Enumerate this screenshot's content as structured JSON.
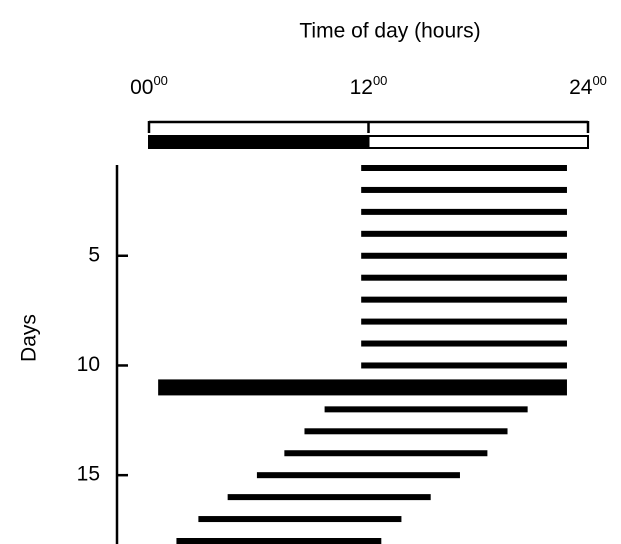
{
  "chart_data": {
    "type": "actogram",
    "title": "Time of day (hours)",
    "ylabel": "Days",
    "xlim": [
      0,
      24
    ],
    "xticks": [
      {
        "value": 0,
        "label": "00",
        "sup": "00"
      },
      {
        "value": 12,
        "label": "12",
        "sup": "00"
      },
      {
        "value": 24,
        "label": "24",
        "sup": "00"
      }
    ],
    "lighting": [
      {
        "start": 0,
        "end": 12,
        "color": "#000000"
      },
      {
        "start": 12,
        "end": 24,
        "color": "#ffffff"
      }
    ],
    "ylim": [
      1,
      18
    ],
    "yticks": [
      5,
      10,
      15
    ],
    "days": [
      1,
      2,
      3,
      4,
      5,
      6,
      7,
      8,
      9,
      10,
      11,
      12,
      13,
      14,
      15,
      16,
      17,
      18
    ],
    "onset": [
      11.6,
      11.6,
      11.6,
      11.6,
      11.6,
      11.6,
      11.6,
      11.6,
      11.6,
      11.6,
      0.5,
      9.6,
      8.5,
      7.4,
      5.9,
      4.3,
      2.7,
      1.5
    ],
    "offset": [
      22.85,
      22.85,
      22.85,
      22.85,
      22.85,
      22.85,
      22.85,
      22.85,
      22.85,
      22.85,
      22.85,
      20.7,
      19.6,
      18.5,
      17.0,
      15.4,
      13.8,
      12.7
    ],
    "thick_days": [
      11
    ],
    "color": "#000000"
  }
}
